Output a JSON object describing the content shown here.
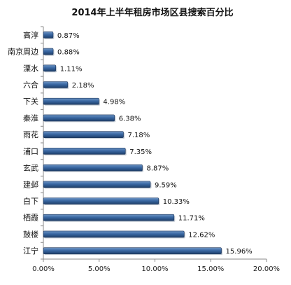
{
  "chart_data": {
    "type": "bar",
    "orientation": "horizontal",
    "title": "2014年上半年租房市场区县搜索百分比",
    "xlabel": "",
    "ylabel": "",
    "categories": [
      "高淳",
      "南京周边",
      "溧水",
      "六合",
      "下关",
      "秦淮",
      "雨花",
      "浦口",
      "玄武",
      "建邺",
      "白下",
      "栖霞",
      "鼓楼",
      "江宁"
    ],
    "values": [
      0.87,
      0.88,
      1.11,
      2.18,
      4.98,
      6.38,
      7.18,
      7.35,
      8.87,
      9.59,
      10.33,
      11.71,
      12.62,
      15.96
    ],
    "data_labels": [
      "0.87%",
      "0.88%",
      "1.11%",
      "2.18%",
      "4.98%",
      "6.38%",
      "7.18%",
      "7.35%",
      "8.87%",
      "9.59%",
      "10.33%",
      "11.71%",
      "12.62%",
      "15.96%"
    ],
    "xlim": [
      0,
      20
    ],
    "x_ticks": [
      0,
      5,
      10,
      15,
      20
    ],
    "x_tick_labels": [
      "0.00%",
      "5.00%",
      "10.00%",
      "15.00%",
      "20.00%"
    ],
    "grid": false,
    "legend": "none",
    "bar_color": "#2e5a8f"
  }
}
